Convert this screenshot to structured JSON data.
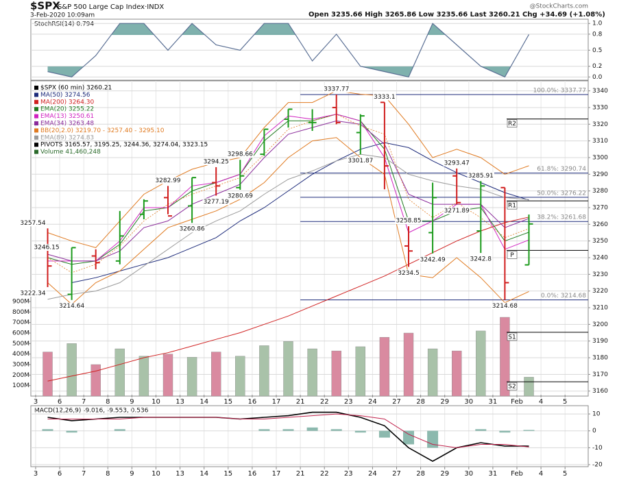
{
  "header": {
    "symbol": "$SPX",
    "name": "S&P 500 Large Cap Index·INDX",
    "date": "3-Feb-2020 10:09am",
    "quote": "Open 3235.66  High 3265.86  Low 3235.66  Last 3260.21  Chg +34.69 (+1.08%)",
    "credit": "@StockCharts.com"
  },
  "chart_data": [
    {
      "type": "area",
      "title": "StochRSI(14) 0.794",
      "color": "#5a6f94",
      "fill": "#5f9e98",
      "values": [
        0.1,
        0.0,
        0.4,
        1.0,
        1.0,
        0.5,
        1.0,
        0.6,
        0.5,
        1.0,
        1.0,
        0.3,
        0.8,
        0.2,
        0.1,
        0.0,
        1.0,
        0.6,
        0.2,
        0.0,
        0.794,
        null,
        null
      ],
      "ylim": [
        -0.06,
        1.08
      ],
      "yticks": [
        {
          "value": 0,
          "label": "0.0"
        },
        {
          "value": 0.2,
          "label": "0.2"
        },
        {
          "value": 0.5,
          "label": "0.5"
        },
        {
          "value": 0.8,
          "label": "0.8"
        },
        {
          "value": 1,
          "label": "1.0"
        }
      ],
      "grid": true
    },
    {
      "type": "ohlc",
      "label": "$SPX (60 min) 3260.21",
      "up_color": "#1a9a1a",
      "down_color": "#d01c1c",
      "categories": [
        "3",
        "6",
        "7",
        "8",
        "9",
        "10",
        "13",
        "14",
        "15",
        "16",
        "17",
        "21",
        "22",
        "23",
        "24",
        "27",
        "28",
        "29",
        "30",
        "31",
        "Feb",
        "4",
        "5"
      ],
      "open": [
        3246,
        3218,
        3241,
        3238,
        3266,
        3276,
        3271,
        3285,
        3282,
        3302,
        3323,
        3321,
        3330,
        3315,
        3333.1,
        3247,
        3255,
        3289,
        3256,
        3282,
        3235.66,
        null,
        null
      ],
      "high": [
        3257.54,
        3246,
        3245,
        3268,
        3275,
        3282.99,
        3288,
        3294.25,
        3298.66,
        3317,
        3329,
        3329,
        3337.77,
        3326,
        3333.1,
        3258.85,
        3285,
        3293.47,
        3285.91,
        3282,
        3265.86,
        null,
        null
      ],
      "low": [
        3222.34,
        3214.64,
        3233,
        3236,
        3263,
        3266,
        3260.86,
        3277.19,
        3280.69,
        3301,
        3318,
        3316,
        3320,
        3301.87,
        3281,
        3234.5,
        3242.49,
        3271.89,
        3242.8,
        3214.68,
        3235.66,
        null,
        null
      ],
      "close": [
        3235,
        3246,
        3237,
        3253,
        3274,
        3265,
        3288,
        3283,
        3289,
        3317,
        3329,
        3321,
        3321,
        3325,
        3295,
        3244,
        3276,
        3273,
        3283,
        3225,
        3260.21,
        null,
        null
      ],
      "price_labels": [
        3246.15
      ],
      "series": [
        {
          "name": "MA(50) 3274.56",
          "color": "#1c2a7a",
          "values": [
            null,
            3225,
            3228,
            3232,
            3236,
            3240,
            3246,
            3252,
            3262,
            3270,
            3280,
            3290,
            3298,
            3305,
            3309,
            3306,
            3298,
            3291,
            3285,
            3279,
            3274.56,
            null,
            null
          ]
        },
        {
          "name": "MA(200) 3264.30",
          "color": "#d02020",
          "values": [
            3166,
            3169,
            3172,
            3176,
            3180,
            3183,
            3187,
            3191,
            3195,
            3200,
            3205,
            3211,
            3217,
            3223,
            3229,
            3236,
            3243,
            3250,
            3256,
            3261,
            3264.3,
            null,
            null
          ]
        },
        {
          "name": "EMA(20) 3255.22",
          "color": "#1f7a1f",
          "values": [
            3240,
            3236,
            3238,
            3248,
            3268,
            3270,
            3280,
            3285,
            3290,
            3310,
            3322,
            3322,
            3326,
            3322,
            3305,
            3262,
            3262,
            3268,
            3270,
            3250,
            3255.22,
            null,
            null
          ]
        },
        {
          "name": "EMA(13) 3250.61",
          "color": "#d020c0",
          "values": [
            3238,
            3238,
            3238,
            3250,
            3270,
            3270,
            3283,
            3285,
            3290,
            3313,
            3325,
            3323,
            3326,
            3322,
            3300,
            3255,
            3262,
            3272,
            3272,
            3245,
            3250.61,
            null,
            null
          ]
        },
        {
          "name": "EMA(34) 3263.48",
          "color": "#8a2a9a",
          "values": [
            3242,
            3238,
            3238,
            3244,
            3258,
            3262,
            3272,
            3278,
            3284,
            3300,
            3314,
            3318,
            3322,
            3320,
            3308,
            3278,
            3272,
            3272,
            3272,
            3258,
            3263.48,
            null,
            null
          ]
        },
        {
          "name": "BB(20,2.0) 3219.70 - 3257.40 - 3295.10",
          "color": "#e07a20",
          "values": [
            3240,
            3231,
            3236,
            3247,
            3262,
            3272,
            3278,
            3283,
            3288,
            3302,
            3317,
            3322,
            3326,
            3319,
            3314,
            3275,
            3264,
            3273,
            3264,
            3252,
            3257.4,
            null,
            null
          ],
          "upper": [
            3255,
            3250,
            3246,
            3262,
            3278,
            3286,
            3293,
            3297,
            3300,
            3318,
            3333,
            3333,
            3340,
            3338,
            3337,
            3320,
            3300,
            3305,
            3300,
            3290,
            3295.1,
            null,
            null
          ],
          "lower": [
            3225,
            3212,
            3225,
            3232,
            3245,
            3258,
            3263,
            3268,
            3275,
            3285,
            3300,
            3310,
            3312,
            3300,
            3290,
            3230,
            3228,
            3240,
            3228,
            3213,
            3219.7,
            null,
            null
          ]
        },
        {
          "name": "EMA(89) 3274.83",
          "color": "#9a9a9a",
          "values": [
            3215,
            3218,
            3220,
            3225,
            3235,
            3245,
            3255,
            3262,
            3268,
            3278,
            3287,
            3292,
            3298,
            3302,
            3300,
            3290,
            3286,
            3283,
            3281,
            3276,
            3274.83,
            null,
            null
          ]
        },
        {
          "name": "Volume 41,460,248",
          "color": "#a9c2a9",
          "down_color": "#d98aa0",
          "axis": "y2",
          "values": [
            420000000,
            500000000,
            300000000,
            450000000,
            380000000,
            400000000,
            370000000,
            420000000,
            380000000,
            480000000,
            520000000,
            450000000,
            430000000,
            470000000,
            560000000,
            600000000,
            450000000,
            430000000,
            620000000,
            750000000,
            180000000,
            null,
            null
          ]
        }
      ],
      "pivot_legend": "PIVOTS 3165.57, 3195.25, 3244.36, 3274.04, 3323.15",
      "pivots": [
        {
          "value": 3323.15,
          "label": "R2"
        },
        {
          "value": 3274.04,
          "label": "R1"
        },
        {
          "value": 3244.36,
          "label": "P"
        },
        {
          "value": 3195.25,
          "label": "S1"
        },
        {
          "value": 3165.57,
          "label": "S2"
        }
      ],
      "fib": [
        {
          "value": 3337.77,
          "label": "100.0%: 3337.77"
        },
        {
          "value": 3290.74,
          "label": "61.8%: 3290.74"
        },
        {
          "value": 3276.22,
          "label": "50.0%: 3276.22"
        },
        {
          "value": 3261.68,
          "label": "38.2%: 3261.68"
        },
        {
          "value": 3214.68,
          "label": "0.0%: 3214.68"
        }
      ],
      "ylim": [
        3157,
        3346
      ],
      "yticks": [
        3160,
        3170,
        3180,
        3190,
        3200,
        3210,
        3220,
        3230,
        3240,
        3250,
        3260,
        3270,
        3280,
        3290,
        3300,
        3310,
        3320,
        3330,
        3340
      ],
      "y2lim": [
        0,
        3000000000
      ],
      "y2ticks": [
        {
          "value": 100000000,
          "label": "100M"
        },
        {
          "value": 200000000,
          "label": "200M"
        },
        {
          "value": 300000000,
          "label": "300M"
        },
        {
          "value": 400000000,
          "label": "400M"
        },
        {
          "value": 500000000,
          "label": "500M"
        },
        {
          "value": 600000000,
          "label": "600M"
        },
        {
          "value": 700000000,
          "label": "700M"
        },
        {
          "value": 800000000,
          "label": "800M"
        },
        {
          "value": 900000000,
          "label": "900M"
        }
      ],
      "grid": true
    },
    {
      "type": "line",
      "title": "MACD(12,26,9) -9.016, -9.553, 0.536",
      "categories": [
        "3",
        "6",
        "7",
        "8",
        "9",
        "10",
        "13",
        "14",
        "15",
        "16",
        "17",
        "21",
        "22",
        "23",
        "24",
        "27",
        "28",
        "29",
        "30",
        "31",
        "Feb",
        "4",
        "5"
      ],
      "series": [
        {
          "name": "MACD",
          "color": "#000000",
          "values": [
            8,
            6,
            7,
            8,
            8,
            8,
            8,
            8,
            7,
            8,
            9,
            11,
            11,
            8,
            3,
            -10,
            -18,
            -10,
            -7,
            -9,
            -9.016,
            null,
            null
          ]
        },
        {
          "name": "Signal",
          "color": "#c0204a",
          "values": [
            7,
            7,
            7,
            7,
            8,
            8,
            8,
            8,
            7,
            7,
            8,
            9,
            10,
            9,
            7,
            -2,
            -8,
            -10,
            -8,
            -8,
            -9.553,
            null,
            null
          ]
        },
        {
          "name": "Histogram",
          "color": "#6fa89a",
          "style": "bar",
          "values": [
            1,
            -1,
            0,
            1,
            0,
            0,
            0,
            0,
            0,
            1,
            1,
            2,
            1,
            -1,
            -4,
            -8,
            -10,
            0,
            1,
            -1,
            0.536,
            null,
            null
          ]
        }
      ],
      "ylim": [
        -20.8,
        14.5
      ],
      "yticks": [
        -20,
        -10,
        0,
        10
      ],
      "grid": true
    }
  ]
}
